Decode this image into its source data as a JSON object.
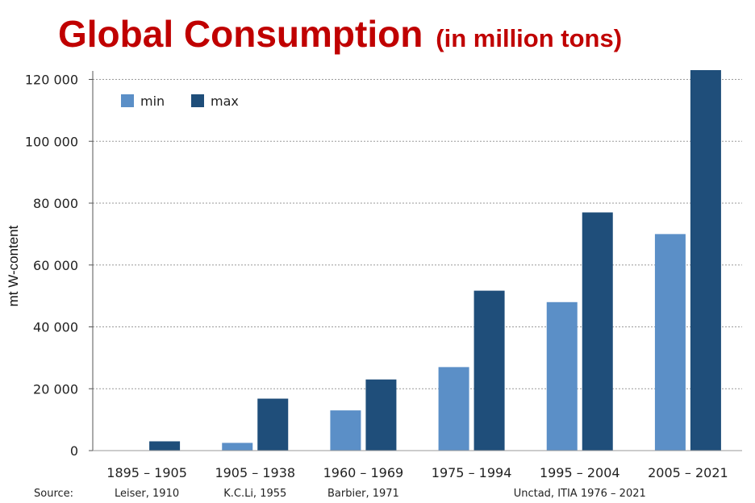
{
  "chart_data": {
    "type": "bar",
    "title": "Global Consumption",
    "subtitle": "(in million tons)",
    "ylabel": "mt W-content",
    "xlabel": "",
    "ylim": [
      0,
      120000
    ],
    "yticks": [
      0,
      20000,
      40000,
      60000,
      80000,
      100000,
      120000
    ],
    "ytick_labels": [
      "0",
      "20 000",
      "40 000",
      "60 000",
      "80 000",
      "100 000",
      "120 000"
    ],
    "categories": [
      "1895 – 1905",
      "1905 – 1938",
      "1960 – 1969",
      "1975 – 1994",
      "1995 – 2004",
      "2005 – 2021"
    ],
    "series": [
      {
        "name": "min",
        "color": "#5b8fc7",
        "values": [
          null,
          2500,
          13000,
          27000,
          48000,
          70000
        ]
      },
      {
        "name": "max",
        "color": "#1f4e7a",
        "values": [
          3000,
          16800,
          23000,
          51700,
          77000,
          123000
        ]
      }
    ],
    "grid": true,
    "legend_position": "top-left",
    "source_label": "Source:",
    "sources": [
      "Leiser, 1910",
      "K.C.Li, 1955",
      "Barbier, 1971",
      "Unctad, ITIA 1976 – 2021"
    ]
  }
}
